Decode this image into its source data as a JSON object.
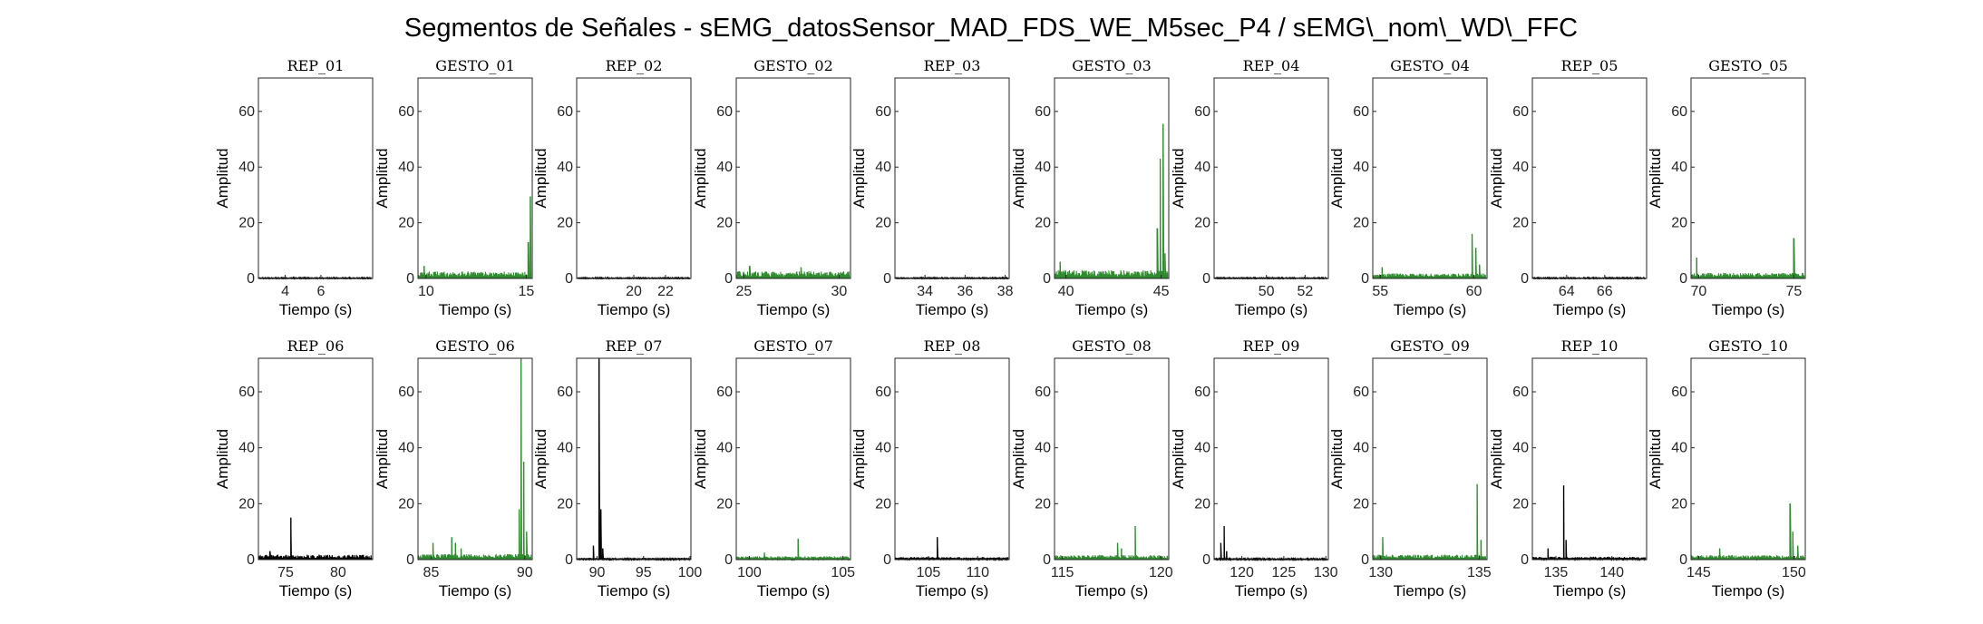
{
  "figure": {
    "title": "Segmentos de Señales - sEMG_datosSensor_MAD_FDS_WE_M5sec_P4 / sEMG\\_nom\\_WD\\_FFC"
  },
  "colors": {
    "rep": "#000000",
    "gesto": "#2e8b2e",
    "axis": "#262626"
  },
  "chart_data": [
    {
      "type": "area",
      "title": "REP_01",
      "xlabel": "Tiempo (s)",
      "ylabel": "Amplitud",
      "ylim": [
        0,
        72
      ],
      "xlim": [
        2.5,
        8.9
      ],
      "yticks": [
        0,
        20,
        40,
        60
      ],
      "xticks": [
        4,
        6
      ],
      "series": [
        {
          "name": "REP_01",
          "color": "#000000",
          "noise": 0.3,
          "spikes": []
        }
      ]
    },
    {
      "type": "area",
      "title": "GESTO_01",
      "xlabel": "Tiempo (s)",
      "ylabel": "Amplitud",
      "ylim": [
        0,
        72
      ],
      "xlim": [
        9.6,
        15.3
      ],
      "yticks": [
        0,
        20,
        40,
        60
      ],
      "xticks": [
        10,
        15
      ],
      "series": [
        {
          "name": "GESTO_01",
          "color": "#2e8b2e",
          "noise": 2.5,
          "spikes": [
            [
              9.9,
              4.5
            ],
            [
              15.1,
              13
            ],
            [
              15.2,
              29.5
            ]
          ]
        }
      ]
    },
    {
      "type": "area",
      "title": "REP_02",
      "xlabel": "Tiempo (s)",
      "ylabel": "Amplitud",
      "ylim": [
        0,
        72
      ],
      "xlim": [
        16.4,
        23.6
      ],
      "yticks": [
        0,
        20,
        40,
        60
      ],
      "xticks": [
        20,
        22
      ],
      "series": [
        {
          "name": "REP_02",
          "color": "#000000",
          "noise": 0.3,
          "spikes": []
        }
      ]
    },
    {
      "type": "area",
      "title": "GESTO_02",
      "xlabel": "Tiempo (s)",
      "ylabel": "Amplitud",
      "ylim": [
        0,
        72
      ],
      "xlim": [
        24.6,
        30.6
      ],
      "yticks": [
        0,
        20,
        40,
        60
      ],
      "xticks": [
        25,
        30
      ],
      "series": [
        {
          "name": "GESTO_02",
          "color": "#2e8b2e",
          "noise": 2.6,
          "spikes": [
            [
              25.3,
              4.5
            ],
            [
              28.0,
              4
            ]
          ]
        }
      ]
    },
    {
      "type": "area",
      "title": "REP_03",
      "xlabel": "Tiempo (s)",
      "ylabel": "Amplitud",
      "ylim": [
        0,
        72
      ],
      "xlim": [
        32.5,
        38.2
      ],
      "yticks": [
        0,
        20,
        40,
        60
      ],
      "xticks": [
        34,
        36,
        38
      ],
      "series": [
        {
          "name": "REP_03",
          "color": "#000000",
          "noise": 0.3,
          "spikes": []
        }
      ]
    },
    {
      "type": "area",
      "title": "GESTO_03",
      "xlabel": "Tiempo (s)",
      "ylabel": "Amplitud",
      "ylim": [
        0,
        72
      ],
      "xlim": [
        39.4,
        45.4
      ],
      "yticks": [
        0,
        20,
        40,
        60
      ],
      "xticks": [
        40,
        45
      ],
      "series": [
        {
          "name": "GESTO_03",
          "color": "#2e8b2e",
          "noise": 3.0,
          "spikes": [
            [
              39.7,
              6
            ],
            [
              44.8,
              18
            ],
            [
              44.95,
              43
            ],
            [
              45.1,
              55.5
            ],
            [
              45.2,
              9
            ]
          ]
        }
      ]
    },
    {
      "type": "area",
      "title": "REP_04",
      "xlabel": "Tiempo (s)",
      "ylabel": "Amplitud",
      "ylim": [
        0,
        72
      ],
      "xlim": [
        47.3,
        53.2
      ],
      "yticks": [
        0,
        20,
        40,
        60
      ],
      "xticks": [
        50,
        52
      ],
      "series": [
        {
          "name": "REP_04",
          "color": "#000000",
          "noise": 0.3,
          "spikes": []
        }
      ]
    },
    {
      "type": "area",
      "title": "GESTO_04",
      "xlabel": "Tiempo (s)",
      "ylabel": "Amplitud",
      "ylim": [
        0,
        72
      ],
      "xlim": [
        54.6,
        60.7
      ],
      "yticks": [
        0,
        20,
        40,
        60
      ],
      "xticks": [
        55,
        60
      ],
      "series": [
        {
          "name": "GESTO_04",
          "color": "#2e8b2e",
          "noise": 1.8,
          "spikes": [
            [
              55.1,
              4
            ],
            [
              59.9,
              16
            ],
            [
              60.1,
              11
            ],
            [
              60.3,
              5
            ]
          ]
        }
      ]
    },
    {
      "type": "area",
      "title": "REP_05",
      "xlabel": "Tiempo (s)",
      "ylabel": "Amplitud",
      "ylim": [
        0,
        72
      ],
      "xlim": [
        62.2,
        68.2
      ],
      "yticks": [
        0,
        20,
        40,
        60
      ],
      "xticks": [
        64,
        66
      ],
      "series": [
        {
          "name": "REP_05",
          "color": "#000000",
          "noise": 0.3,
          "spikes": []
        }
      ]
    },
    {
      "type": "area",
      "title": "GESTO_05",
      "xlabel": "Tiempo (s)",
      "ylabel": "Amplitud",
      "ylim": [
        0,
        72
      ],
      "xlim": [
        69.6,
        75.6
      ],
      "yticks": [
        0,
        20,
        40,
        60
      ],
      "xticks": [
        70,
        75
      ],
      "series": [
        {
          "name": "GESTO_05",
          "color": "#2e8b2e",
          "noise": 2.0,
          "spikes": [
            [
              69.9,
              7.5
            ],
            [
              75.0,
              14.5
            ]
          ]
        }
      ]
    },
    {
      "type": "area",
      "title": "REP_06",
      "xlabel": "Tiempo (s)",
      "ylabel": "Amplitud",
      "ylim": [
        0,
        72
      ],
      "xlim": [
        72.4,
        83.3
      ],
      "yticks": [
        0,
        20,
        40,
        60
      ],
      "xticks": [
        75,
        80
      ],
      "series": [
        {
          "name": "REP_06",
          "color": "#000000",
          "noise": 1.8,
          "spikes": [
            [
              73.5,
              3
            ],
            [
              75.5,
              15
            ]
          ]
        }
      ]
    },
    {
      "type": "area",
      "title": "GESTO_06",
      "xlabel": "Tiempo (s)",
      "ylabel": "Amplitud",
      "ylim": [
        0,
        72
      ],
      "xlim": [
        84.3,
        90.4
      ],
      "yticks": [
        0,
        20,
        40,
        60
      ],
      "xticks": [
        85,
        90
      ],
      "series": [
        {
          "name": "GESTO_06",
          "color": "#2e8b2e",
          "noise": 2.0,
          "spikes": [
            [
              85.1,
              6
            ],
            [
              86.1,
              8
            ],
            [
              86.3,
              6
            ],
            [
              86.6,
              4
            ],
            [
              89.7,
              18
            ],
            [
              89.8,
              72
            ],
            [
              89.95,
              35
            ],
            [
              90.1,
              10
            ]
          ]
        }
      ]
    },
    {
      "type": "area",
      "title": "REP_07",
      "xlabel": "Tiempo (s)",
      "ylabel": "Amplitud",
      "ylim": [
        0,
        72
      ],
      "xlim": [
        87.8,
        100.1
      ],
      "yticks": [
        0,
        20,
        40,
        60
      ],
      "xticks": [
        90,
        95,
        100
      ],
      "series": [
        {
          "name": "REP_07",
          "color": "#000000",
          "noise": 0.6,
          "spikes": [
            [
              89.6,
              5
            ],
            [
              90.2,
              72
            ],
            [
              90.4,
              18
            ],
            [
              90.6,
              4
            ]
          ]
        }
      ]
    },
    {
      "type": "area",
      "title": "GESTO_07",
      "xlabel": "Tiempo (s)",
      "ylabel": "Amplitud",
      "ylim": [
        0,
        72
      ],
      "xlim": [
        99.3,
        105.4
      ],
      "yticks": [
        0,
        20,
        40,
        60
      ],
      "xticks": [
        100,
        105
      ],
      "series": [
        {
          "name": "GESTO_07",
          "color": "#2e8b2e",
          "noise": 1.2,
          "spikes": [
            [
              100.8,
              2.5
            ],
            [
              102.6,
              7.5
            ]
          ]
        }
      ]
    },
    {
      "type": "area",
      "title": "REP_08",
      "xlabel": "Tiempo (s)",
      "ylabel": "Amplitud",
      "ylim": [
        0,
        72
      ],
      "xlim": [
        101.6,
        113.2
      ],
      "yticks": [
        0,
        20,
        40,
        60
      ],
      "xticks": [
        105,
        110
      ],
      "series": [
        {
          "name": "REP_08",
          "color": "#000000",
          "noise": 0.9,
          "spikes": [
            [
              105.9,
              8
            ]
          ]
        }
      ]
    },
    {
      "type": "area",
      "title": "GESTO_08",
      "xlabel": "Tiempo (s)",
      "ylabel": "Amplitud",
      "ylim": [
        0,
        72
      ],
      "xlim": [
        114.6,
        120.4
      ],
      "yticks": [
        0,
        20,
        40,
        60
      ],
      "xticks": [
        115,
        120
      ],
      "series": [
        {
          "name": "GESTO_08",
          "color": "#2e8b2e",
          "noise": 1.6,
          "spikes": [
            [
              117.8,
              6
            ],
            [
              118.0,
              4
            ],
            [
              118.7,
              12
            ]
          ]
        }
      ]
    },
    {
      "type": "area",
      "title": "REP_09",
      "xlabel": "Tiempo (s)",
      "ylabel": "Amplitud",
      "ylim": [
        0,
        72
      ],
      "xlim": [
        116.7,
        130.3
      ],
      "yticks": [
        0,
        20,
        40,
        60
      ],
      "xticks": [
        120,
        125,
        130
      ],
      "series": [
        {
          "name": "REP_09",
          "color": "#000000",
          "noise": 0.5,
          "spikes": [
            [
              117.5,
              6
            ],
            [
              117.9,
              12
            ],
            [
              118.2,
              3
            ]
          ]
        }
      ]
    },
    {
      "type": "area",
      "title": "GESTO_09",
      "xlabel": "Tiempo (s)",
      "ylabel": "Amplitud",
      "ylim": [
        0,
        72
      ],
      "xlim": [
        129.6,
        135.4
      ],
      "yticks": [
        0,
        20,
        40,
        60
      ],
      "xticks": [
        130,
        135
      ],
      "series": [
        {
          "name": "GESTO_09",
          "color": "#2e8b2e",
          "noise": 1.8,
          "spikes": [
            [
              130.1,
              8
            ],
            [
              134.9,
              27
            ],
            [
              135.1,
              7
            ]
          ]
        }
      ]
    },
    {
      "type": "area",
      "title": "REP_10",
      "xlabel": "Tiempo (s)",
      "ylabel": "Amplitud",
      "ylim": [
        0,
        72
      ],
      "xlim": [
        132.9,
        143.1
      ],
      "yticks": [
        0,
        20,
        40,
        60
      ],
      "xticks": [
        135,
        140
      ],
      "series": [
        {
          "name": "REP_10",
          "color": "#000000",
          "noise": 1.0,
          "spikes": [
            [
              134.3,
              4
            ],
            [
              135.7,
              26.5
            ],
            [
              135.9,
              7
            ]
          ]
        }
      ]
    },
    {
      "type": "area",
      "title": "GESTO_10",
      "xlabel": "Tiempo (s)",
      "ylabel": "Amplitud",
      "ylim": [
        0,
        72
      ],
      "xlim": [
        144.6,
        150.6
      ],
      "yticks": [
        0,
        20,
        40,
        60
      ],
      "xticks": [
        145,
        150
      ],
      "series": [
        {
          "name": "GESTO_10",
          "color": "#2e8b2e",
          "noise": 1.6,
          "spikes": [
            [
              146.1,
              4
            ],
            [
              149.8,
              20
            ],
            [
              149.95,
              10
            ],
            [
              150.2,
              5
            ]
          ]
        }
      ]
    }
  ]
}
